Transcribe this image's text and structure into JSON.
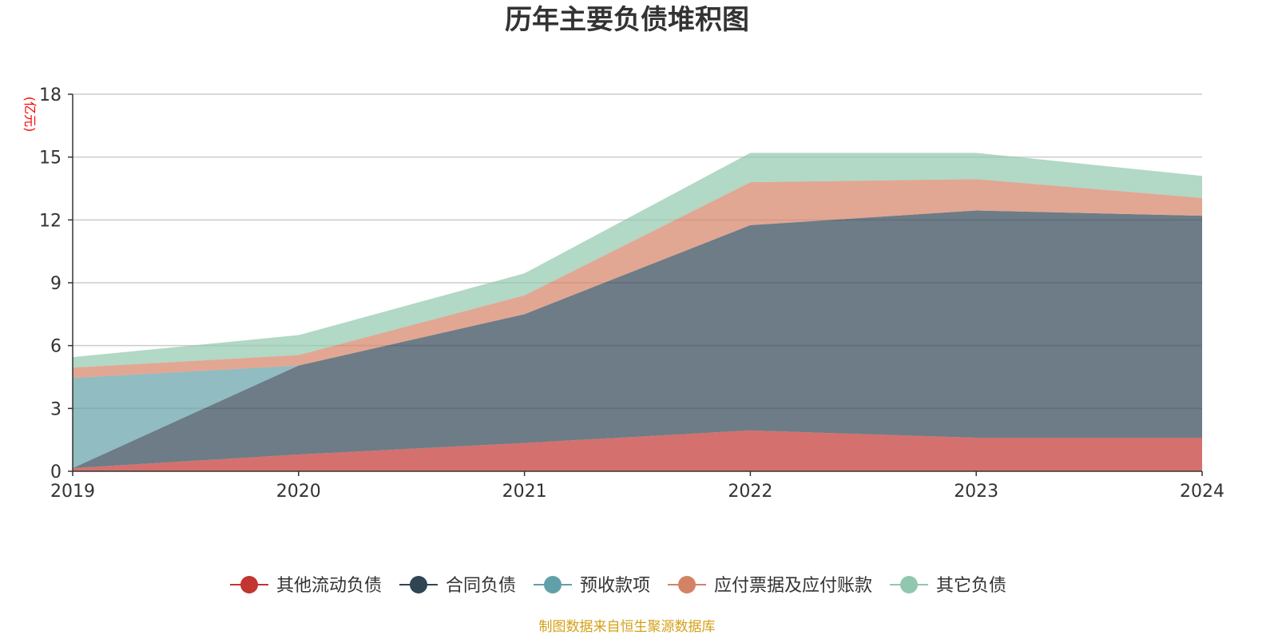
{
  "chart_data": {
    "type": "area",
    "title": "历年主要负债堆积图",
    "ylabel": "(亿元)",
    "source": "制图数据来自恒生聚源数据库",
    "x": [
      "2019",
      "2020",
      "2021",
      "2022",
      "2023",
      "2024"
    ],
    "y_ticks": [
      "0",
      "3",
      "6",
      "9",
      "12",
      "15",
      "18"
    ],
    "ylim": [
      0,
      18
    ],
    "grid": true,
    "stacked": true,
    "legend_position": "bottom",
    "series": [
      {
        "name": "其他流动负债",
        "color": "#c23531",
        "values": [
          0.15,
          0.8,
          1.35,
          1.95,
          1.6,
          1.6
        ]
      },
      {
        "name": "合同负债",
        "color": "#2f4554",
        "values": [
          0.0,
          4.25,
          6.15,
          9.8,
          10.85,
          10.6
        ]
      },
      {
        "name": "预收款项",
        "color": "#61a0a8",
        "values": [
          4.3,
          0.0,
          0.0,
          0.0,
          0.0,
          0.0
        ]
      },
      {
        "name": "应付票据及应付账款",
        "color": "#d48265",
        "values": [
          0.5,
          0.5,
          0.9,
          2.05,
          1.5,
          0.85
        ]
      },
      {
        "name": "其它负债",
        "color": "#91c7ae",
        "values": [
          0.5,
          0.95,
          1.05,
          1.4,
          1.25,
          1.05
        ]
      }
    ]
  }
}
